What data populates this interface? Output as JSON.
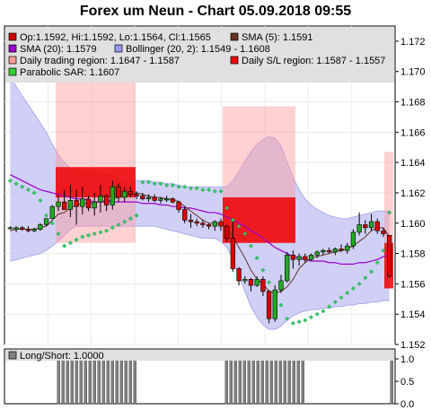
{
  "chart_title": "Forex um Neun - Chart 05.09.2018 09:55",
  "chart_data": [
    {
      "type": "candlestick",
      "title": "Forex um Neun - Chart 05.09.2018 09:55",
      "ylim": [
        1.152,
        1.173
      ],
      "yticks": [
        "1.152",
        "1.154",
        "1.156",
        "1.158",
        "1.160",
        "1.162",
        "1.164",
        "1.166",
        "1.168",
        "1.170",
        "1.172"
      ],
      "legend": [
        {
          "label": "Op:1.1592, Hi:1.1592, Lo:1.1564, Cl:1.1565",
          "color": "#cc0000"
        },
        {
          "label": "SMA (5): 1.1591",
          "color": "#663322"
        },
        {
          "label": "SMA (20): 1.1579",
          "color": "#9900cc"
        },
        {
          "label": "Bollinger (20, 2): 1.1549 - 1.1608",
          "color": "#9999ee"
        },
        {
          "label": "Daily trading region: 1.1647 - 1.1587",
          "color": "#ff9999"
        },
        {
          "label": "Daily S/L region: 1.1587 - 1.1557",
          "color": "#ee0000"
        },
        {
          "label": "Parabolic SAR: 1.1607",
          "color": "#33cc33"
        }
      ],
      "regions": [
        {
          "trading": [
            1.1697,
            1.1587
          ],
          "sl": [
            1.1637,
            1.1617
          ]
        },
        {
          "trading": [
            1.1677,
            1.1587
          ],
          "sl": [
            1.1617,
            1.1587
          ]
        },
        {
          "trading": [
            1.1647,
            1.1587
          ],
          "sl": [
            1.1587,
            1.1557
          ]
        }
      ],
      "candles": [
        {
          "o": 1.1597,
          "h": 1.1598,
          "l": 1.1596,
          "c": 1.1597
        },
        {
          "o": 1.1596,
          "h": 1.1598,
          "l": 1.1594,
          "c": 1.1597
        },
        {
          "o": 1.1597,
          "h": 1.1598,
          "l": 1.1595,
          "c": 1.1596
        },
        {
          "o": 1.1596,
          "h": 1.1598,
          "l": 1.1594,
          "c": 1.1595
        },
        {
          "o": 1.1595,
          "h": 1.1597,
          "l": 1.1594,
          "c": 1.1596
        },
        {
          "o": 1.1596,
          "h": 1.16,
          "l": 1.1595,
          "c": 1.1599
        },
        {
          "o": 1.1599,
          "h": 1.1603,
          "l": 1.1598,
          "c": 1.1603
        },
        {
          "o": 1.1603,
          "h": 1.1612,
          "l": 1.1603,
          "c": 1.1611
        },
        {
          "o": 1.1611,
          "h": 1.1618,
          "l": 1.1608,
          "c": 1.1614
        },
        {
          "o": 1.1614,
          "h": 1.1622,
          "l": 1.161,
          "c": 1.1609
        },
        {
          "o": 1.1609,
          "h": 1.1625,
          "l": 1.1604,
          "c": 1.1615
        },
        {
          "o": 1.1615,
          "h": 1.1622,
          "l": 1.1599,
          "c": 1.1611
        },
        {
          "o": 1.1611,
          "h": 1.1624,
          "l": 1.1606,
          "c": 1.1616
        },
        {
          "o": 1.1616,
          "h": 1.1618,
          "l": 1.1608,
          "c": 1.161
        },
        {
          "o": 1.161,
          "h": 1.162,
          "l": 1.1605,
          "c": 1.1614
        },
        {
          "o": 1.1614,
          "h": 1.1625,
          "l": 1.1607,
          "c": 1.1618
        },
        {
          "o": 1.1618,
          "h": 1.1619,
          "l": 1.1608,
          "c": 1.1612
        },
        {
          "o": 1.1612,
          "h": 1.1628,
          "l": 1.1609,
          "c": 1.1624
        },
        {
          "o": 1.1624,
          "h": 1.1626,
          "l": 1.1614,
          "c": 1.1617
        },
        {
          "o": 1.1617,
          "h": 1.1624,
          "l": 1.1614,
          "c": 1.1621
        },
        {
          "o": 1.1621,
          "h": 1.1624,
          "l": 1.1617,
          "c": 1.1619
        },
        {
          "o": 1.1619,
          "h": 1.1621,
          "l": 1.1616,
          "c": 1.1618
        },
        {
          "o": 1.1618,
          "h": 1.162,
          "l": 1.1615,
          "c": 1.1616
        },
        {
          "o": 1.1616,
          "h": 1.1619,
          "l": 1.1614,
          "c": 1.1617
        },
        {
          "o": 1.1617,
          "h": 1.1619,
          "l": 1.1614,
          "c": 1.1615
        },
        {
          "o": 1.1615,
          "h": 1.1617,
          "l": 1.1613,
          "c": 1.1616
        },
        {
          "o": 1.1616,
          "h": 1.1618,
          "l": 1.1614,
          "c": 1.1616
        },
        {
          "o": 1.1616,
          "h": 1.1617,
          "l": 1.1613,
          "c": 1.1614
        },
        {
          "o": 1.1614,
          "h": 1.1615,
          "l": 1.1607,
          "c": 1.1609
        },
        {
          "o": 1.1609,
          "h": 1.1611,
          "l": 1.16,
          "c": 1.1602
        },
        {
          "o": 1.1602,
          "h": 1.1606,
          "l": 1.1597,
          "c": 1.1601
        },
        {
          "o": 1.1601,
          "h": 1.1603,
          "l": 1.1598,
          "c": 1.16
        },
        {
          "o": 1.16,
          "h": 1.1602,
          "l": 1.1597,
          "c": 1.1599
        },
        {
          "o": 1.1599,
          "h": 1.16,
          "l": 1.1596,
          "c": 1.1598
        },
        {
          "o": 1.1598,
          "h": 1.1602,
          "l": 1.1595,
          "c": 1.1601
        },
        {
          "o": 1.1601,
          "h": 1.1603,
          "l": 1.1595,
          "c": 1.1598
        },
        {
          "o": 1.1598,
          "h": 1.1599,
          "l": 1.1588,
          "c": 1.159
        },
        {
          "o": 1.159,
          "h": 1.1601,
          "l": 1.1568,
          "c": 1.157
        },
        {
          "o": 1.157,
          "h": 1.1571,
          "l": 1.1559,
          "c": 1.1562
        },
        {
          "o": 1.1562,
          "h": 1.1565,
          "l": 1.156,
          "c": 1.1563
        },
        {
          "o": 1.1563,
          "h": 1.1564,
          "l": 1.1555,
          "c": 1.1559
        },
        {
          "o": 1.1559,
          "h": 1.1565,
          "l": 1.1558,
          "c": 1.1563
        },
        {
          "o": 1.1563,
          "h": 1.1565,
          "l": 1.1552,
          "c": 1.1555
        },
        {
          "o": 1.1555,
          "h": 1.1556,
          "l": 1.1534,
          "c": 1.1537
        },
        {
          "o": 1.1537,
          "h": 1.1559,
          "l": 1.1535,
          "c": 1.1556
        },
        {
          "o": 1.1556,
          "h": 1.1566,
          "l": 1.1554,
          "c": 1.1562
        },
        {
          "o": 1.1562,
          "h": 1.1581,
          "l": 1.1561,
          "c": 1.1579
        },
        {
          "o": 1.1579,
          "h": 1.1582,
          "l": 1.157,
          "c": 1.1576
        },
        {
          "o": 1.1576,
          "h": 1.158,
          "l": 1.1572,
          "c": 1.1578
        },
        {
          "o": 1.1578,
          "h": 1.158,
          "l": 1.1574,
          "c": 1.1576
        },
        {
          "o": 1.1576,
          "h": 1.158,
          "l": 1.1575,
          "c": 1.1579
        },
        {
          "o": 1.1579,
          "h": 1.1582,
          "l": 1.1577,
          "c": 1.1581
        },
        {
          "o": 1.1581,
          "h": 1.1583,
          "l": 1.1579,
          "c": 1.1582
        },
        {
          "o": 1.1582,
          "h": 1.1584,
          "l": 1.158,
          "c": 1.1581
        },
        {
          "o": 1.1581,
          "h": 1.1584,
          "l": 1.1579,
          "c": 1.1583
        },
        {
          "o": 1.1583,
          "h": 1.1586,
          "l": 1.1581,
          "c": 1.1582
        },
        {
          "o": 1.1582,
          "h": 1.1587,
          "l": 1.158,
          "c": 1.1585
        },
        {
          "o": 1.1585,
          "h": 1.1596,
          "l": 1.1583,
          "c": 1.1594
        },
        {
          "o": 1.1594,
          "h": 1.1607,
          "l": 1.1592,
          "c": 1.1599
        },
        {
          "o": 1.1599,
          "h": 1.1602,
          "l": 1.1593,
          "c": 1.1597
        },
        {
          "o": 1.1597,
          "h": 1.1606,
          "l": 1.1595,
          "c": 1.1601
        },
        {
          "o": 1.1601,
          "h": 1.1603,
          "l": 1.1593,
          "c": 1.1595
        },
        {
          "o": 1.1595,
          "h": 1.1597,
          "l": 1.1591,
          "c": 1.1593
        },
        {
          "o": 1.1592,
          "h": 1.1592,
          "l": 1.1564,
          "c": 1.1565
        }
      ],
      "sma5": [
        1.1595,
        1.1596,
        1.1596,
        1.1596,
        1.1596,
        1.1597,
        1.1598,
        1.1602,
        1.1606,
        1.1607,
        1.161,
        1.1612,
        1.1613,
        1.1613,
        1.1613,
        1.1615,
        1.1614,
        1.1616,
        1.1617,
        1.1618,
        1.1619,
        1.162,
        1.1619,
        1.1618,
        1.1617,
        1.1617,
        1.1616,
        1.1616,
        1.1614,
        1.1611,
        1.1608,
        1.1605,
        1.1602,
        1.16,
        1.16,
        1.1599,
        1.1597,
        1.1591,
        1.1584,
        1.1577,
        1.1569,
        1.1563,
        1.156,
        1.1555,
        1.1554,
        1.1555,
        1.1558,
        1.1563,
        1.157,
        1.1574,
        1.1577,
        1.1578,
        1.1579,
        1.158,
        1.1581,
        1.1582,
        1.1583,
        1.1585,
        1.1588,
        1.1591,
        1.1595,
        1.1597,
        1.1597,
        1.1591
      ],
      "sma20": [
        1.1632,
        1.163,
        1.1628,
        1.1626,
        1.1624,
        1.1622,
        1.1621,
        1.162,
        1.1619,
        1.1618,
        1.1617,
        1.1616,
        1.1616,
        1.1615,
        1.1614,
        1.1614,
        1.1614,
        1.1614,
        1.1614,
        1.1614,
        1.1614,
        1.1614,
        1.1613,
        1.1613,
        1.1613,
        1.1612,
        1.1612,
        1.1611,
        1.1611,
        1.161,
        1.161,
        1.1609,
        1.1608,
        1.1607,
        1.1607,
        1.1606,
        1.1604,
        1.1602,
        1.16,
        1.1598,
        1.1595,
        1.1593,
        1.159,
        1.1587,
        1.1584,
        1.1582,
        1.158,
        1.1578,
        1.1577,
        1.1576,
        1.1575,
        1.1575,
        1.1575,
        1.1574,
        1.1574,
        1.1573,
        1.1573,
        1.1573,
        1.1574,
        1.1574,
        1.1575,
        1.1576,
        1.1578,
        1.1579
      ],
      "boll_upper": [
        1.1697,
        1.169,
        1.1684,
        1.1678,
        1.1672,
        1.1666,
        1.166,
        1.1652,
        1.1645,
        1.164,
        1.1636,
        1.1634,
        1.1634,
        1.1634,
        1.1633,
        1.1633,
        1.1632,
        1.1631,
        1.163,
        1.1629,
        1.1629,
        1.1628,
        1.1628,
        1.1628,
        1.1627,
        1.1627,
        1.1626,
        1.1626,
        1.1625,
        1.1624,
        1.1624,
        1.1624,
        1.1624,
        1.1624,
        1.1624,
        1.1624,
        1.1624,
        1.1628,
        1.1634,
        1.1641,
        1.1647,
        1.1652,
        1.1655,
        1.1657,
        1.1656,
        1.1651,
        1.164,
        1.163,
        1.1622,
        1.1616,
        1.1612,
        1.1609,
        1.1607,
        1.1605,
        1.1604,
        1.1603,
        1.1603,
        1.1604,
        1.1605,
        1.1606,
        1.1607,
        1.1608,
        1.1608,
        1.1608
      ],
      "boll_lower": [
        1.1575,
        1.1576,
        1.1577,
        1.1578,
        1.1579,
        1.158,
        1.1582,
        1.1585,
        1.1588,
        1.1592,
        1.1596,
        1.1598,
        1.1598,
        1.1598,
        1.1598,
        1.1598,
        1.1598,
        1.1598,
        1.1598,
        1.1598,
        1.1598,
        1.1598,
        1.1598,
        1.1598,
        1.1598,
        1.1597,
        1.1596,
        1.1595,
        1.1594,
        1.1593,
        1.1592,
        1.1591,
        1.159,
        1.159,
        1.159,
        1.1588,
        1.1584,
        1.1576,
        1.1566,
        1.1555,
        1.1545,
        1.1538,
        1.1533,
        1.153,
        1.153,
        1.1532,
        1.1536,
        1.1539,
        1.1541,
        1.1542,
        1.1543,
        1.1543,
        1.1544,
        1.1544,
        1.1545,
        1.1545,
        1.1546,
        1.1546,
        1.1547,
        1.1547,
        1.1548,
        1.1548,
        1.1549,
        1.1549
      ],
      "sar": [
        1.1628,
        1.1626,
        1.1624,
        1.1622,
        1.162,
        1.1615,
        1.1605,
        1.16,
        1.1593,
        1.1585,
        1.1587,
        1.1589,
        1.1591,
        1.1592,
        1.1593,
        1.1594,
        1.1595,
        1.1597,
        1.1599,
        1.1601,
        1.1603,
        1.1605,
        1.1627,
        1.1627,
        1.1626,
        1.1626,
        1.1625,
        1.1625,
        1.1624,
        1.1624,
        1.1623,
        1.1623,
        1.1622,
        1.1622,
        1.1621,
        1.1621,
        1.161,
        1.1602,
        1.1598,
        1.1593,
        1.1585,
        1.1577,
        1.1569,
        1.1561,
        1.1552,
        1.1546,
        1.1537,
        1.1534,
        1.1535,
        1.1536,
        1.1538,
        1.154,
        1.1542,
        1.1545,
        1.1548,
        1.1551,
        1.1554,
        1.1557,
        1.156,
        1.1564,
        1.1568,
        1.1574,
        1.1582,
        1.1607
      ]
    },
    {
      "type": "bar",
      "legend": [
        {
          "label": "Long/Short: 1.0000",
          "color": "#808080"
        }
      ],
      "ylim": [
        0,
        1
      ],
      "yticks": [
        "0.0",
        "0.5",
        "1.0"
      ],
      "values": [
        0,
        0,
        0,
        0,
        0,
        0,
        0,
        0,
        0,
        0,
        0,
        0,
        0,
        0,
        0,
        0,
        0,
        0,
        0,
        0,
        0,
        0,
        0,
        0,
        0,
        0,
        0,
        0,
        0,
        0,
        0,
        0,
        0,
        0,
        0,
        0,
        0,
        0,
        0,
        0,
        0,
        0,
        0,
        0,
        0,
        0,
        0,
        0,
        0,
        0,
        0,
        0,
        0,
        0,
        0,
        0,
        0,
        0,
        0,
        0,
        0,
        0,
        0,
        0,
        0,
        0,
        0,
        0,
        0,
        0,
        0,
        0,
        0,
        0,
        0,
        0,
        0,
        0,
        0,
        0,
        0,
        0,
        0,
        0,
        0,
        0,
        0,
        0,
        0,
        0,
        0,
        0,
        0,
        0,
        0,
        0,
        0,
        0,
        0,
        0,
        0,
        0,
        0,
        0,
        0,
        0,
        0,
        0,
        0,
        0,
        0,
        0,
        0,
        0,
        0,
        0,
        0,
        0,
        0,
        0,
        0,
        0,
        0,
        0
      ],
      "groups": [
        {
          "start": 0.135,
          "end": 0.335
        },
        {
          "start": 0.565,
          "end": 0.765
        },
        {
          "start": 0.988,
          "end": 1.0
        }
      ]
    }
  ]
}
